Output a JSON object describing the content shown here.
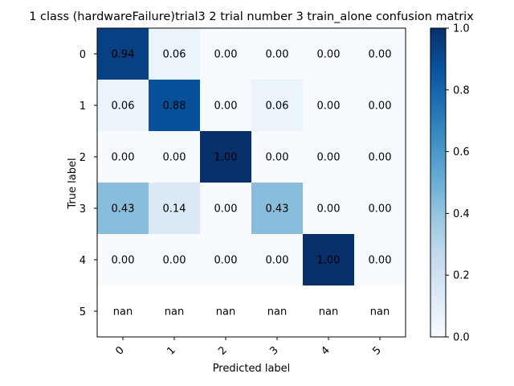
{
  "chart_data": {
    "type": "heatmap",
    "title": "1 class (hardwareFailure)trial3 2 trial number 3 train_alone confusion matrix",
    "xlabel": "Predicted label",
    "ylabel": "True label",
    "x_categories": [
      "0",
      "1",
      "2",
      "3",
      "4",
      "5"
    ],
    "y_categories": [
      "0",
      "1",
      "2",
      "3",
      "4",
      "5"
    ],
    "values": [
      [
        0.94,
        0.06,
        0.0,
        0.0,
        0.0,
        0.0
      ],
      [
        0.06,
        0.88,
        0.0,
        0.06,
        0.0,
        0.0
      ],
      [
        0.0,
        0.0,
        1.0,
        0.0,
        0.0,
        0.0
      ],
      [
        0.43,
        0.14,
        0.0,
        0.43,
        0.0,
        0.0
      ],
      [
        0.0,
        0.0,
        0.0,
        0.0,
        1.0,
        0.0
      ],
      [
        null,
        null,
        null,
        null,
        null,
        null
      ]
    ],
    "cell_labels": [
      [
        "0.94",
        "0.06",
        "0.00",
        "0.00",
        "0.00",
        "0.00"
      ],
      [
        "0.06",
        "0.88",
        "0.00",
        "0.06",
        "0.00",
        "0.00"
      ],
      [
        "0.00",
        "0.00",
        "1.00",
        "0.00",
        "0.00",
        "0.00"
      ],
      [
        "0.43",
        "0.14",
        "0.00",
        "0.43",
        "0.00",
        "0.00"
      ],
      [
        "0.00",
        "0.00",
        "0.00",
        "0.00",
        "1.00",
        "0.00"
      ],
      [
        "nan",
        "nan",
        "nan",
        "nan",
        "nan",
        "nan"
      ]
    ],
    "colormap": "Blues",
    "colorbar": {
      "min": 0.0,
      "max": 1.0,
      "ticks": [
        "0.0",
        "0.2",
        "0.4",
        "0.6",
        "0.8",
        "1.0"
      ]
    },
    "x_tick_rotation_deg": 45
  }
}
